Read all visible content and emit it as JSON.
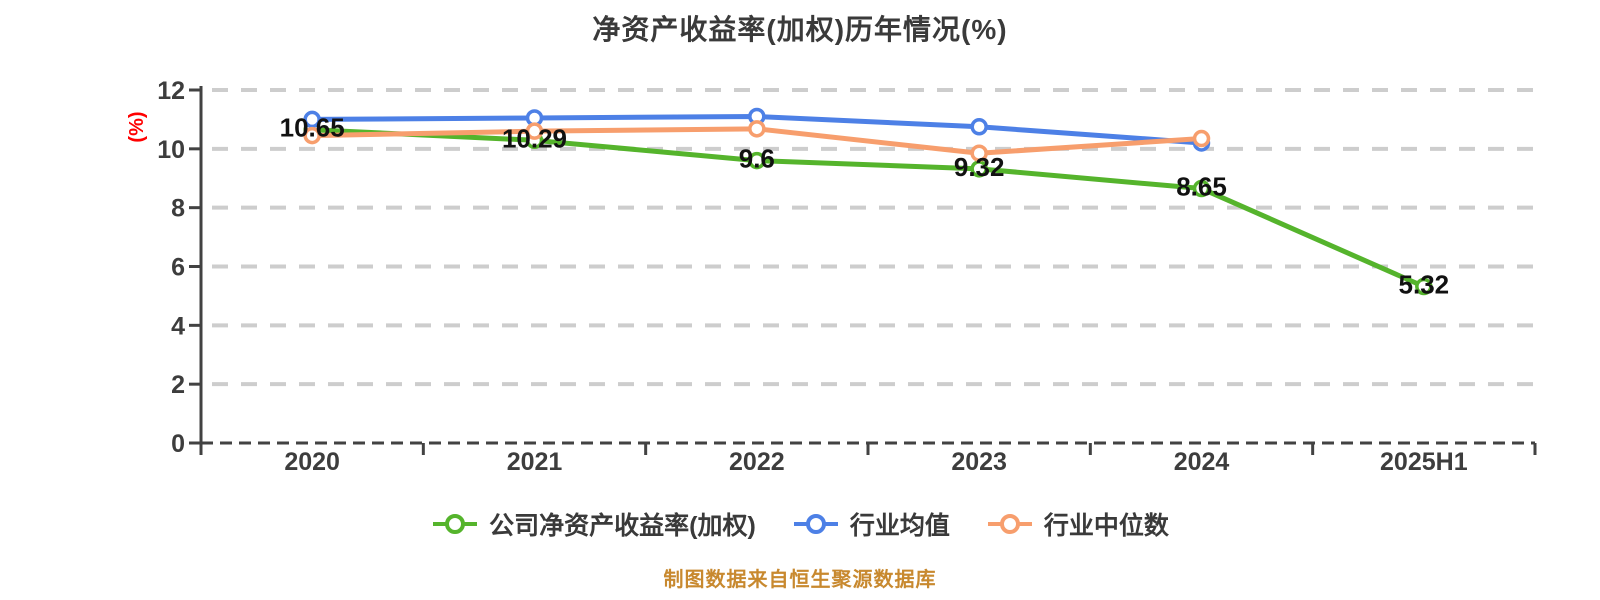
{
  "title": "净资产收益率(加权)历年情况(%)",
  "y_axis": {
    "unit_label": "(%)",
    "ticks": [
      0,
      2,
      4,
      6,
      8,
      10,
      12
    ]
  },
  "footer": {
    "source_note": "制图数据来自恒生聚源数据库"
  },
  "colors": {
    "company": "#55b42c",
    "industry_mean": "#4d80e6",
    "industry_median": "#f79e6d",
    "unit_label": "#ff0000",
    "source_note": "#c8892f",
    "axis_text": "#3d3d3d",
    "axis_line": "#424242",
    "grid": "#cdcdcd",
    "point_label": "#111111",
    "marker_fill": "#ffffff"
  },
  "chart_data": {
    "type": "line",
    "categories": [
      "2020",
      "2021",
      "2022",
      "2023",
      "2024",
      "2025H1"
    ],
    "series": [
      {
        "name": "公司净资产收益率(加权)",
        "color": "#55b42c",
        "values": [
          10.65,
          10.29,
          9.6,
          9.32,
          8.65,
          5.32
        ],
        "point_labels": [
          "10.65",
          "10.29",
          "9.6",
          "9.32",
          "8.65",
          "5.32"
        ]
      },
      {
        "name": "行业均值",
        "color": "#4d80e6",
        "values": [
          11.0,
          11.05,
          11.1,
          10.75,
          10.2,
          null
        ],
        "point_labels": []
      },
      {
        "name": "行业中位数",
        "color": "#f79e6d",
        "values": [
          10.45,
          10.6,
          10.68,
          9.85,
          10.35,
          null
        ],
        "point_labels": []
      }
    ],
    "ylim": [
      0,
      12
    ],
    "grid": "horizontal-dashed",
    "legend_position": "bottom",
    "marker": "hollow-circle"
  }
}
